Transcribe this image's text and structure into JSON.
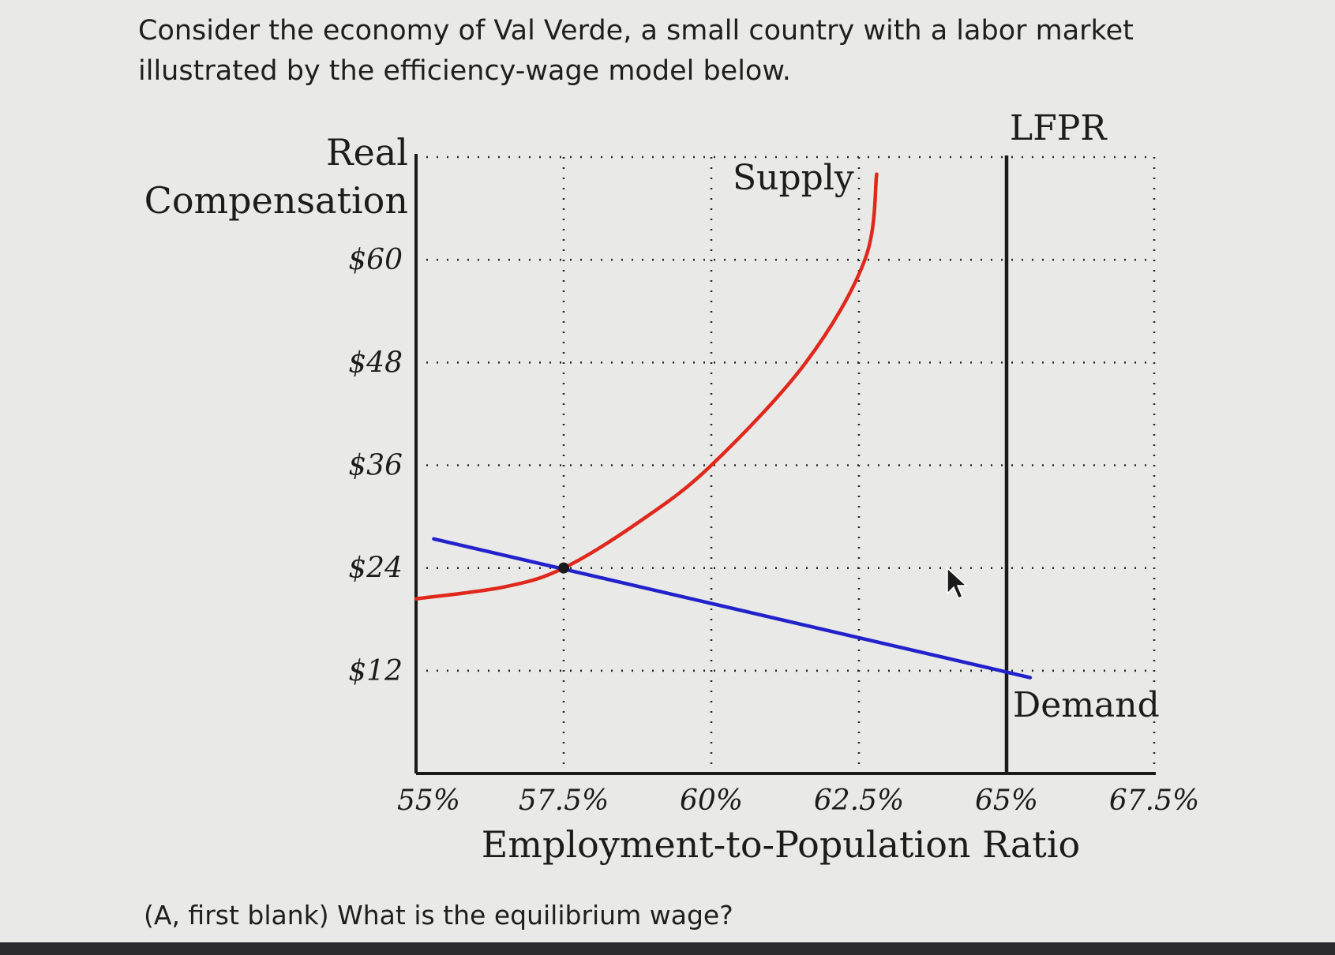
{
  "intro_text": "Consider the economy of Val Verde, a small country with a labor market illustrated by the efficiency-wage model below.",
  "question_text": "(A, first blank) What is the equilibrium wage?",
  "chart_data": {
    "type": "line",
    "xlabel": "Employment-to-Population Ratio",
    "ylabel_lines": [
      "Real",
      "Compensation"
    ],
    "x_ticks": [
      55,
      57.5,
      60,
      62.5,
      65,
      67.5
    ],
    "x_tick_labels": [
      "55%",
      "57.5%",
      "60%",
      "62.5%",
      "65%",
      "67.5%"
    ],
    "y_ticks": [
      12,
      24,
      36,
      48,
      60
    ],
    "y_tick_labels": [
      "$12",
      "$24",
      "$36",
      "$48",
      "$60"
    ],
    "xlim": [
      55,
      67.5
    ],
    "ylim": [
      0,
      72
    ],
    "grid": true,
    "series": [
      {
        "name": "Supply",
        "color": "#e0281c",
        "points": [
          [
            55,
            20.4
          ],
          [
            56.5,
            21.8
          ],
          [
            57.5,
            24
          ],
          [
            58.8,
            29.5
          ],
          [
            60,
            36
          ],
          [
            61.6,
            48
          ],
          [
            62.6,
            60
          ],
          [
            62.8,
            70
          ]
        ]
      },
      {
        "name": "Demand",
        "color": "#2222cc",
        "points": [
          [
            55.3,
            27.4
          ],
          [
            65.4,
            11.2
          ]
        ]
      }
    ],
    "vertical_lines": [
      {
        "name": "LFPR",
        "x": 65,
        "color": "#1a1a1a"
      }
    ],
    "equilibrium": {
      "x": 57.5,
      "y": 24
    }
  }
}
